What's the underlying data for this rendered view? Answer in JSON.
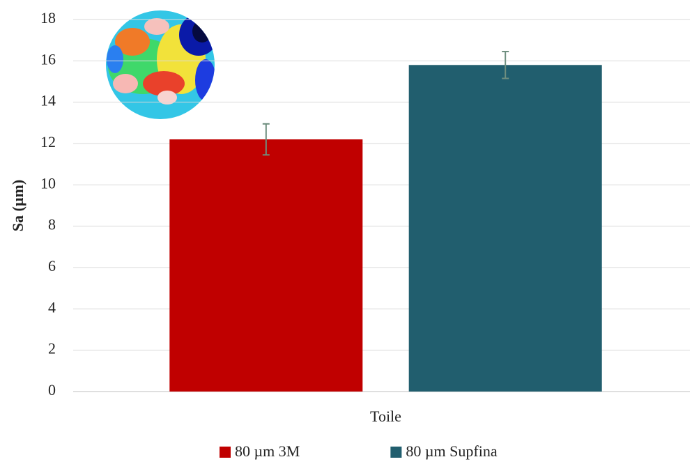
{
  "chart_data": {
    "type": "bar",
    "categories": [
      "Toile"
    ],
    "series": [
      {
        "name": "80 µm 3M",
        "color": "#c00000",
        "values": [
          12.2
        ],
        "errors": [
          0.75
        ]
      },
      {
        "name": "80 µm Supfina",
        "color": "#215e6e",
        "values": [
          15.8
        ],
        "errors": [
          0.65
        ]
      }
    ],
    "y_label": "Sa (µm)",
    "ylim": [
      0,
      18
    ],
    "yticks": [
      0,
      2,
      4,
      6,
      8,
      10,
      12,
      14,
      16,
      18
    ],
    "grid": true,
    "error_bar_color": "#6f8f7f",
    "legend": "bottom"
  }
}
